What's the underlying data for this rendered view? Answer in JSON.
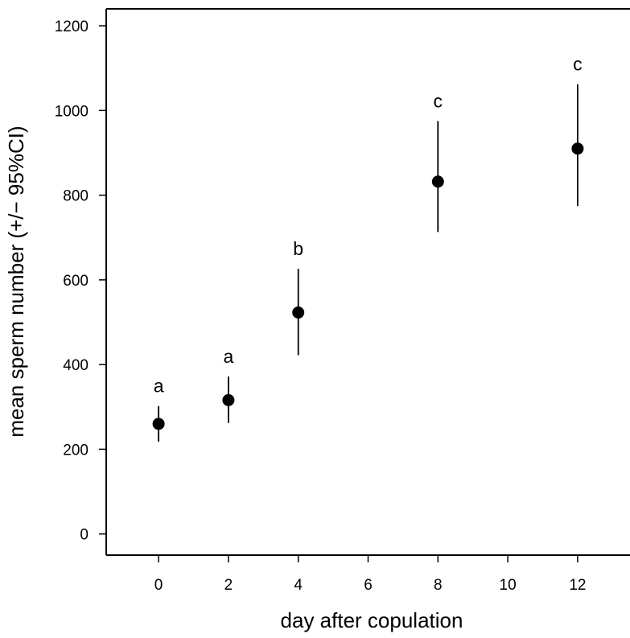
{
  "chart_data": {
    "type": "scatter",
    "title": "",
    "xlabel": "day after copulation",
    "ylabel": "mean sperm number (+/− 95%CI)",
    "xlim": [
      -1.5,
      13.5
    ],
    "ylim": [
      -50,
      1240
    ],
    "x_ticks": [
      0,
      2,
      4,
      6,
      8,
      10,
      12
    ],
    "y_ticks": [
      0,
      200,
      400,
      600,
      800,
      1000,
      1200
    ],
    "grid": false,
    "legend": "none",
    "series": [
      {
        "points": [
          {
            "x": 0,
            "y": 260,
            "ci_low": 218,
            "ci_high": 302,
            "group": "a"
          },
          {
            "x": 2,
            "y": 316,
            "ci_low": 262,
            "ci_high": 372,
            "group": "a"
          },
          {
            "x": 4,
            "y": 523,
            "ci_low": 422,
            "ci_high": 626,
            "group": "b"
          },
          {
            "x": 8,
            "y": 832,
            "ci_low": 713,
            "ci_high": 975,
            "group": "c"
          },
          {
            "x": 12,
            "y": 910,
            "ci_low": 774,
            "ci_high": 1062,
            "group": "c"
          }
        ]
      }
    ]
  }
}
